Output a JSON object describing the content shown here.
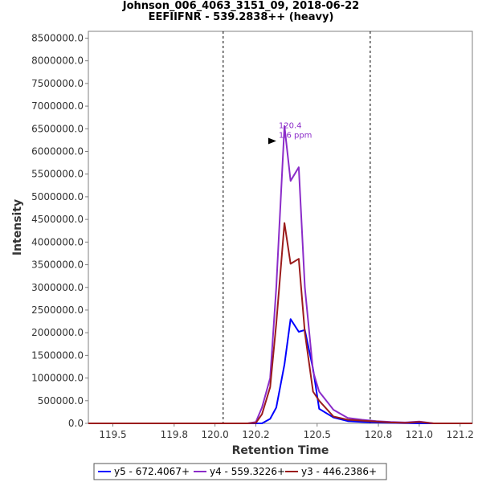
{
  "chart_data": {
    "type": "line",
    "title": "Johnson_006_4063_3151_09, 2018-06-22",
    "subtitle": "EEFIIFNR - 539.2838++ (heavy)",
    "xlabel": "Retention Time",
    "ylabel": "Intensity",
    "xlim": [
      119.38,
      121.26
    ],
    "ylim": [
      0,
      8650000
    ],
    "x_ticks": [
      119.5,
      119.8,
      120.0,
      120.2,
      120.5,
      120.8,
      121.0,
      121.2
    ],
    "x_tick_labels": [
      "119.5",
      "119.8",
      "120.0",
      "120.2",
      "120.5",
      "120.8",
      "121.0",
      "121.2"
    ],
    "y_ticks": [
      0,
      500000,
      1000000,
      1500000,
      2000000,
      2500000,
      3000000,
      3500000,
      4000000,
      4500000,
      5000000,
      5500000,
      6000000,
      6500000,
      7000000,
      7500000,
      8000000,
      8500000
    ],
    "y_tick_labels": [
      "0.0",
      "500000.0",
      "1000000.0",
      "1500000.0",
      "2000000.0",
      "2500000.0",
      "3000000.0",
      "3500000.0",
      "4000000.0",
      "4500000.0",
      "5000000.0",
      "5500000.0",
      "6000000.0",
      "6500000.0",
      "7000000.0",
      "7500000.0",
      "8000000.0",
      "8500000.0"
    ],
    "boundaries": [
      120.04,
      120.76
    ],
    "annotation": {
      "lines": [
        "120.4",
        "1.6 ppm"
      ],
      "x": 120.3,
      "y": 6230000
    },
    "grid": false,
    "legend_position": "bottom",
    "series": [
      {
        "name": "y5 - 672.4067+",
        "color": "#0000ff",
        "x": [
          119.38,
          120.13,
          120.16,
          120.2,
          120.23,
          120.27,
          120.3,
          120.34,
          120.37,
          120.41,
          120.44,
          120.48,
          120.51,
          120.58,
          120.65,
          120.72,
          120.79,
          120.86,
          120.93,
          121.0,
          121.07,
          121.14,
          121.26
        ],
        "y": [
          0,
          0,
          0,
          0,
          0,
          100000,
          350000,
          1300000,
          2300000,
          2020000,
          2060000,
          1200000,
          320000,
          130000,
          50000,
          30000,
          20000,
          10000,
          5000,
          0,
          0,
          0,
          0
        ]
      },
      {
        "name": "y4 - 559.3226+",
        "color": "#8B2CC9",
        "x": [
          119.38,
          120.13,
          120.16,
          120.2,
          120.23,
          120.27,
          120.3,
          120.34,
          120.37,
          120.41,
          120.44,
          120.48,
          120.51,
          120.58,
          120.65,
          120.72,
          120.79,
          120.86,
          120.93,
          121.0,
          121.07,
          121.14,
          121.26
        ],
        "y": [
          0,
          0,
          0,
          30000,
          350000,
          1000000,
          3000000,
          6560000,
          5350000,
          5650000,
          3000000,
          1150000,
          700000,
          300000,
          120000,
          80000,
          50000,
          30000,
          20000,
          40000,
          0,
          0,
          0
        ]
      },
      {
        "name": "y3 - 446.2386+",
        "color": "#9B1C1C",
        "x": [
          119.38,
          120.13,
          120.16,
          120.2,
          120.23,
          120.27,
          120.3,
          120.34,
          120.37,
          120.41,
          120.44,
          120.48,
          120.51,
          120.58,
          120.65,
          120.72,
          120.79,
          120.86,
          120.93,
          121.0,
          121.07,
          121.14,
          121.26
        ],
        "y": [
          0,
          0,
          0,
          10000,
          200000,
          800000,
          2200000,
          4420000,
          3520000,
          3630000,
          2000000,
          700000,
          500000,
          150000,
          80000,
          60000,
          40000,
          20000,
          10000,
          30000,
          0,
          0,
          0
        ]
      }
    ]
  }
}
